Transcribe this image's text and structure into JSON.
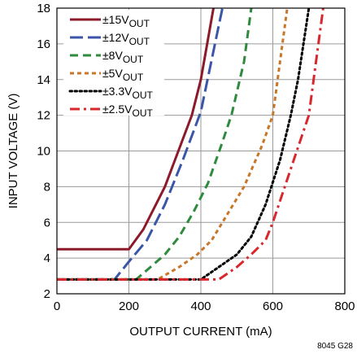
{
  "chart_data": {
    "type": "line",
    "xlabel": "OUTPUT CURRENT (mA)",
    "ylabel": "INPUT VOLTAGE (V)",
    "xlim": [
      0,
      800
    ],
    "ylim": [
      2,
      18
    ],
    "xticks": [
      "0",
      "200",
      "400",
      "600",
      "800"
    ],
    "yticks": [
      "2",
      "4",
      "6",
      "8",
      "10",
      "12",
      "14",
      "16",
      "18"
    ],
    "grid": true,
    "legend_position": "top-left",
    "figure_id": "8045 G28",
    "series": [
      {
        "legend_main": "±15V",
        "legend_sub": "OUT",
        "color": "#8b1a2b",
        "dash": "solid",
        "x": [
          0,
          200,
          240,
          300,
          375,
          400,
          435
        ],
        "y": [
          4.5,
          4.5,
          5.6,
          8,
          12,
          14,
          18
        ]
      },
      {
        "legend_main": "±12V",
        "legend_sub": "OUT",
        "color": "#3b56a8",
        "dash": "longdash",
        "x": [
          0,
          160,
          200,
          250,
          300,
          350,
          400,
          460
        ],
        "y": [
          2.8,
          2.8,
          3.8,
          5,
          7,
          9.5,
          12.2,
          18
        ]
      },
      {
        "legend_main": "±8V",
        "legend_sub": "OUT",
        "color": "#2e8b3e",
        "dash": "dash",
        "x": [
          0,
          220,
          260,
          300,
          340,
          380,
          420,
          460,
          485,
          520,
          540
        ],
        "y": [
          2.8,
          2.8,
          3.5,
          4.2,
          5.2,
          6.6,
          8.2,
          10.5,
          12,
          15,
          18
        ]
      },
      {
        "legend_main": "±5V",
        "legend_sub": "OUT",
        "color": "#c8762a",
        "dash": "shortdash",
        "x": [
          0,
          280,
          340,
          390,
          430,
          460,
          520,
          570,
          600,
          640
        ],
        "y": [
          2.8,
          2.8,
          3.5,
          4.2,
          5,
          6,
          8,
          10.3,
          12,
          18
        ]
      },
      {
        "legend_main": "±3.3V",
        "legend_sub": "OUT",
        "color": "#000000",
        "dash": "dot",
        "x": [
          0,
          400,
          450,
          500,
          540,
          580,
          620,
          650,
          670,
          700
        ],
        "y": [
          2.8,
          2.8,
          3.5,
          4.2,
          5.2,
          7,
          9.5,
          12,
          14,
          18
        ]
      },
      {
        "legend_main": "±2.5V",
        "legend_sub": "OUT",
        "color": "#d9272e",
        "dash": "dashdot",
        "x": [
          0,
          450,
          500,
          540,
          580,
          600,
          650,
          700,
          740
        ],
        "y": [
          2.8,
          2.8,
          3.5,
          4.2,
          5,
          6,
          9,
          12,
          18
        ]
      }
    ]
  }
}
